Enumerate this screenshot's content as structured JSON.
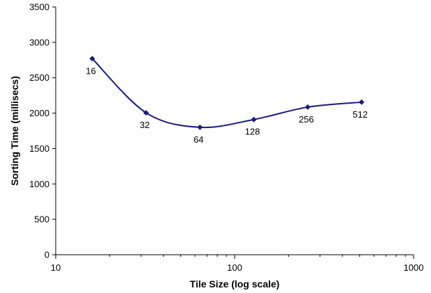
{
  "chart_data": {
    "type": "line",
    "title": "",
    "xlabel": "Tile Size (log scale)",
    "ylabel": "Sorting Time (millisecs)",
    "x_scale": "log",
    "xlim": [
      10,
      1000
    ],
    "ylim": [
      0,
      3500
    ],
    "x_ticks": [
      10,
      100,
      1000
    ],
    "x_tick_labels": [
      "10",
      "100",
      "1000"
    ],
    "y_ticks": [
      0,
      500,
      1000,
      1500,
      2000,
      2500,
      3000,
      3500
    ],
    "y_tick_labels": [
      "0",
      "500",
      "1000",
      "1500",
      "2000",
      "2500",
      "3000",
      "3500"
    ],
    "grid": false,
    "legend": "none",
    "line_color": "#1a1a80",
    "smoothed": true,
    "series": [
      {
        "x": [
          16,
          32,
          64,
          128,
          256,
          512
        ],
        "values": [
          2770,
          2005,
          1800,
          1910,
          2085,
          2155
        ],
        "point_labels": [
          "16",
          "32",
          "64",
          "128",
          "256",
          "512"
        ]
      }
    ]
  }
}
